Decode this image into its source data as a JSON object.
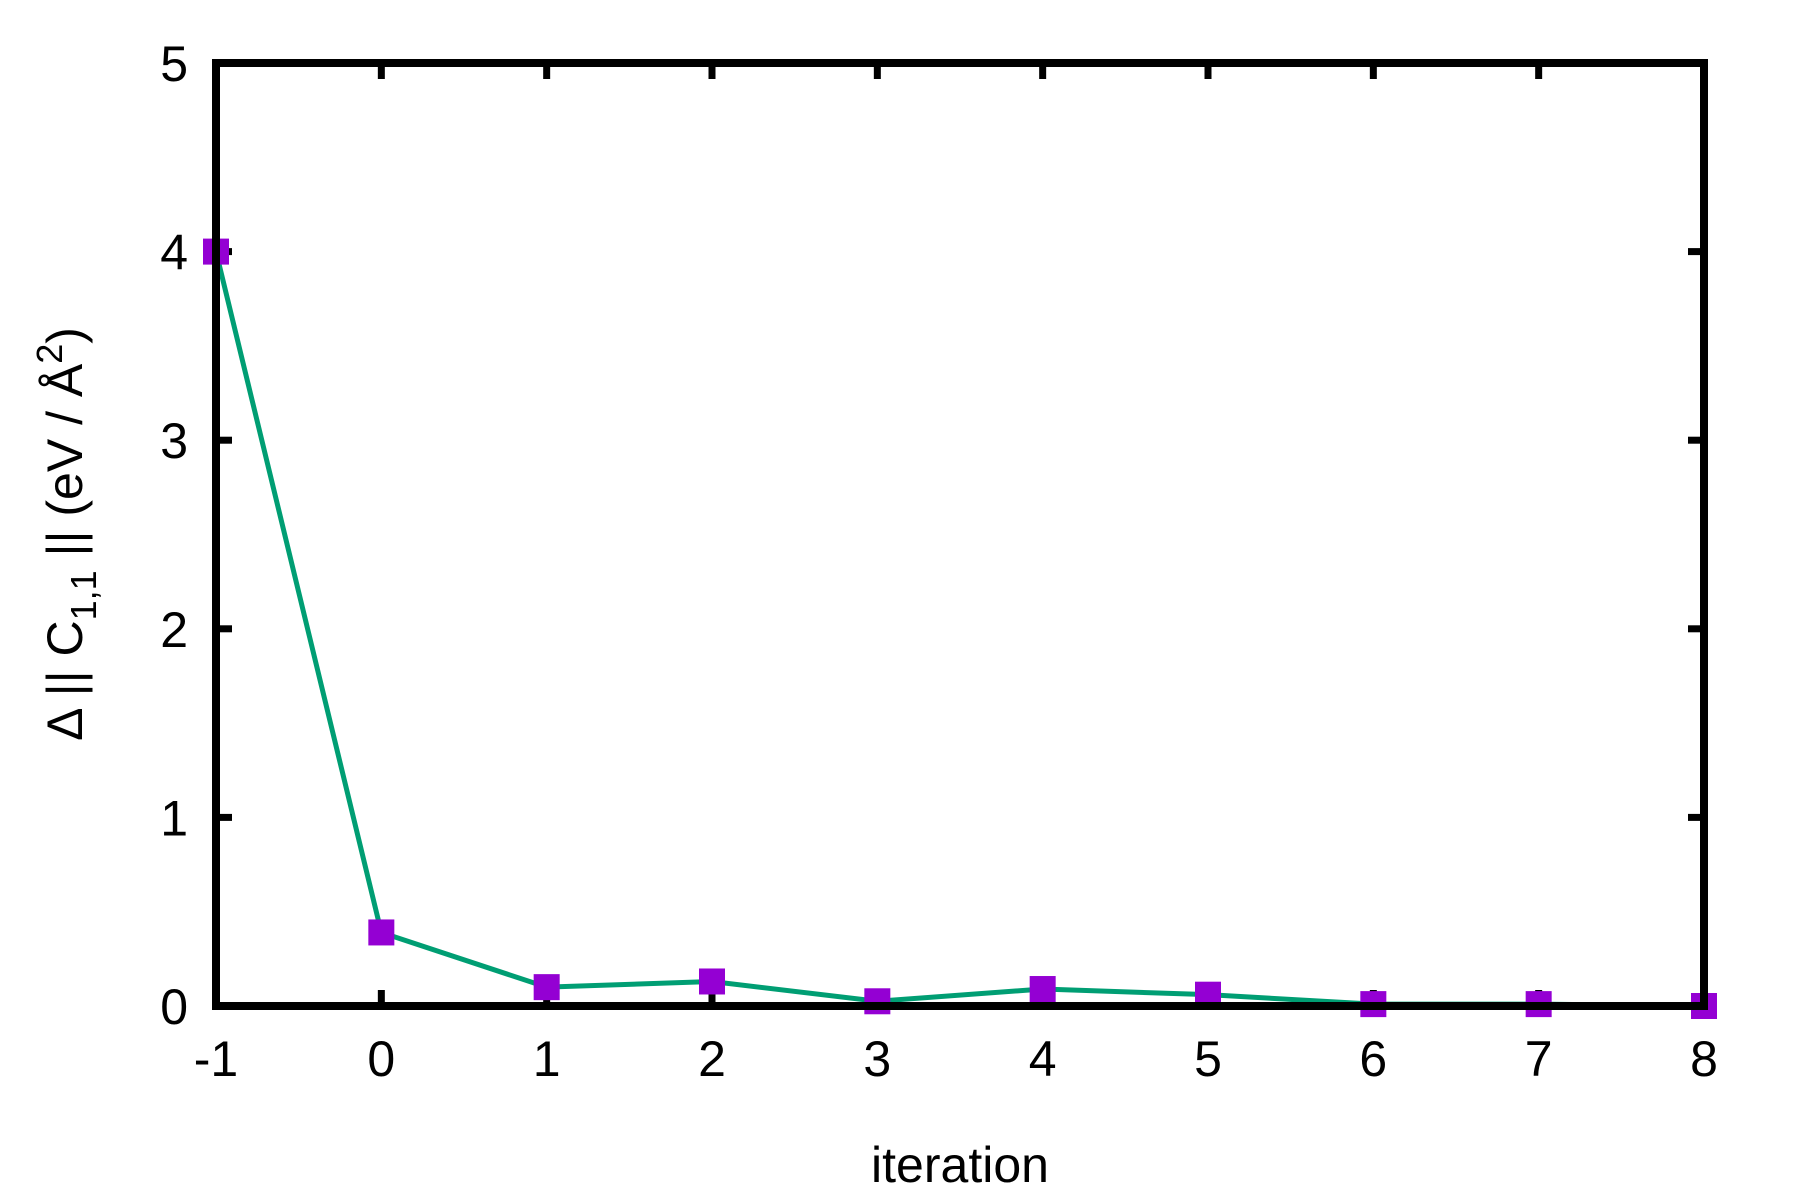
{
  "chart_data": {
    "type": "line",
    "xlabel": "iteration",
    "ylabel": [
      "Δ || C",
      "1,1",
      " || (eV / Å",
      "2",
      ")"
    ],
    "x": [
      -1,
      0,
      1,
      2,
      3,
      4,
      5,
      6,
      7,
      8
    ],
    "series": [
      {
        "color": "#009e73",
        "marker_color": "#9400d3",
        "values": [
          4.0,
          0.39,
          0.1,
          0.13,
          0.025,
          0.09,
          0.06,
          0.01,
          0.01,
          0.0
        ]
      }
    ],
    "xlim": [
      -1,
      8
    ],
    "xticks": [
      -1,
      0,
      1,
      2,
      3,
      4,
      5,
      6,
      7,
      8
    ],
    "ylim": [
      0,
      5
    ],
    "yticks": [
      0,
      1,
      2,
      3,
      4,
      5
    ]
  }
}
